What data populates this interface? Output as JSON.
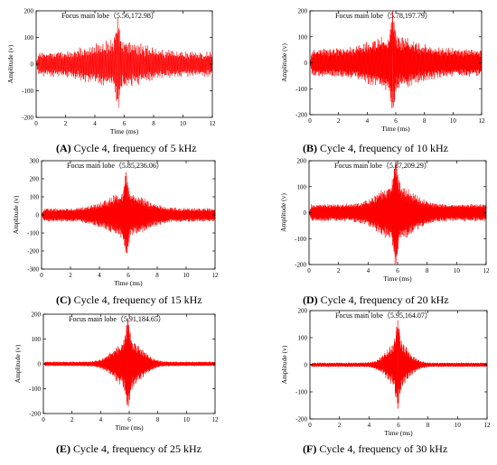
{
  "chart_data": [
    {
      "type": "line",
      "panel": "A",
      "caption": "Cycle 4, frequency of 5 kHz",
      "annotation": "Focus main lobe（5.56,172.98）",
      "peak": [
        5.56,
        172.98
      ],
      "freq_khz": 5,
      "xlabel": "Time (ms)",
      "ylabel": "Amplitude (v)",
      "xlim": [
        0,
        12
      ],
      "ylim": [
        -200,
        200
      ],
      "xticks": [
        0,
        2,
        4,
        6,
        8,
        10,
        12
      ],
      "yticks": [
        -200,
        -100,
        0,
        100,
        200
      ],
      "series": [
        {
          "color": "#ff0000",
          "samples": 900
        }
      ]
    },
    {
      "type": "line",
      "panel": "B",
      "caption": "Cycle 4, frequency of 10 kHz",
      "annotation": "Focus main lobe（5.78,197.79）",
      "peak": [
        5.78,
        197.79
      ],
      "freq_khz": 10,
      "xlabel": "Time (ms)",
      "ylabel": "Amplitude (v)",
      "xlim": [
        0,
        12
      ],
      "ylim": [
        -200,
        200
      ],
      "xticks": [
        0,
        2,
        4,
        6,
        8,
        10,
        12
      ],
      "yticks": [
        -200,
        -100,
        0,
        100,
        200
      ],
      "series": [
        {
          "color": "#ff0000",
          "samples": 1400
        }
      ]
    },
    {
      "type": "line",
      "panel": "C",
      "caption": "Cycle 4, frequency of 15 kHz",
      "annotation": "Focus main lobe（5.85,236.06）",
      "peak": [
        5.85,
        236.06
      ],
      "freq_khz": 15,
      "xlabel": "Time (ms)",
      "ylabel": "Amplitude (v)",
      "xlim": [
        0,
        12
      ],
      "ylim": [
        -300,
        300
      ],
      "xticks": [
        0,
        2,
        4,
        6,
        8,
        10,
        12
      ],
      "yticks": [
        -300,
        -200,
        -100,
        0,
        100,
        200,
        300
      ],
      "series": [
        {
          "color": "#ff0000",
          "samples": 1800
        }
      ]
    },
    {
      "type": "line",
      "panel": "D",
      "caption": "Cycle 4, frequency of 20 kHz",
      "annotation": "Focus main lobe（5.87,209.29）",
      "peak": [
        5.87,
        209.29
      ],
      "freq_khz": 20,
      "xlabel": "Time (ms)",
      "ylabel": "Amplitude (v)",
      "xlim": [
        0,
        12
      ],
      "ylim": [
        -200,
        200
      ],
      "xticks": [
        0,
        2,
        4,
        6,
        8,
        10,
        12
      ],
      "yticks": [
        -200,
        -100,
        0,
        100,
        200
      ],
      "series": [
        {
          "color": "#ff0000",
          "samples": 2200
        }
      ]
    },
    {
      "type": "line",
      "panel": "E",
      "caption": "Cycle 4, frequency of 25 kHz",
      "annotation": "Focus main lobe（5.91,184.65）",
      "peak": [
        5.91,
        184.65
      ],
      "freq_khz": 25,
      "xlabel": "Time (ms)",
      "ylabel": "Amplitude (v)",
      "xlim": [
        0,
        12
      ],
      "ylim": [
        -200,
        200
      ],
      "xticks": [
        0,
        2,
        4,
        6,
        8,
        10,
        12
      ],
      "yticks": [
        -200,
        -100,
        0,
        100,
        200
      ],
      "series": [
        {
          "color": "#ff0000",
          "samples": 2400
        }
      ]
    },
    {
      "type": "line",
      "panel": "F",
      "caption": "Cycle 4, frequency of 30 kHz",
      "annotation": "Focus main lobe（5.95,164.07）",
      "peak": [
        5.95,
        164.07
      ],
      "freq_khz": 30,
      "xlabel": "Time (ms)",
      "ylabel": "Amplitude (v)",
      "xlim": [
        0,
        12
      ],
      "ylim": [
        -200,
        200
      ],
      "xticks": [
        0,
        2,
        4,
        6,
        8,
        10,
        12
      ],
      "yticks": [
        -200,
        -100,
        0,
        100,
        200
      ],
      "series": [
        {
          "color": "#ff0000",
          "samples": 2400
        }
      ]
    }
  ]
}
